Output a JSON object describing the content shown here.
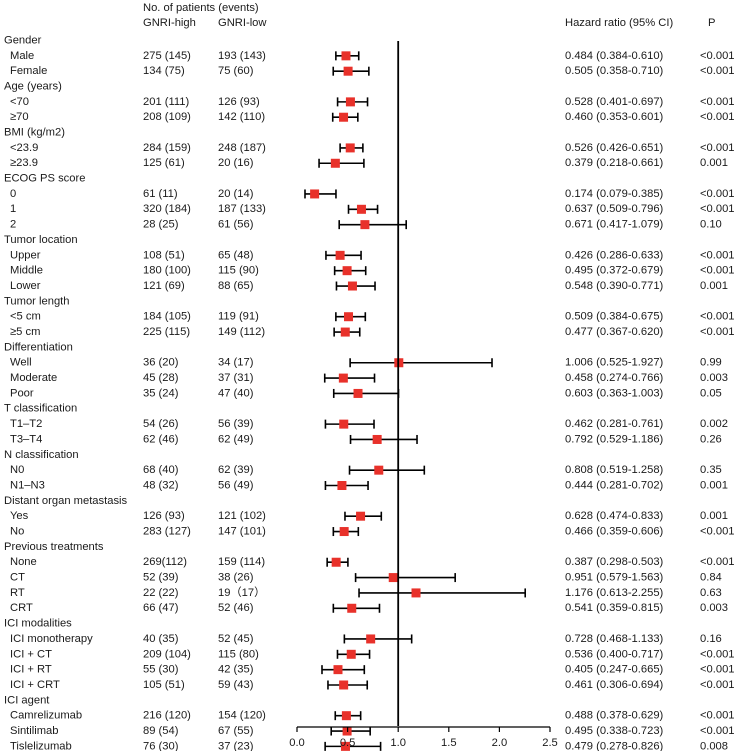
{
  "header": {
    "patients_title": "No. of patients (events)",
    "col_high": "GNRI-high",
    "col_low": "GNRI-low",
    "col_hr": "Hazard ratio (95% CI)",
    "col_p": "P"
  },
  "chart_data": {
    "type": "forest",
    "xlim": [
      0,
      2.5
    ],
    "reference_line": 1.0,
    "x_ticks": [
      "0.0",
      "0.5",
      "1.0",
      "1.5",
      "2.0",
      "2.5"
    ],
    "colors": {
      "marker": "#e8312a",
      "line": "#000000"
    },
    "rows": [
      {
        "label": "Gender",
        "group": true
      },
      {
        "label": "Male",
        "high": "275 (145)",
        "low": "193 (143)",
        "hr": 0.484,
        "lo": 0.384,
        "hi": 0.61,
        "hr_text": "0.484 (0.384-0.610)",
        "p": "<0.001"
      },
      {
        "label": "Female",
        "high": "134 (75)",
        "low": "75 (60)",
        "hr": 0.505,
        "lo": 0.358,
        "hi": 0.71,
        "hr_text": "0.505 (0.358-0.710)",
        "p": "<0.001"
      },
      {
        "label": "Age (years)",
        "group": true
      },
      {
        "label": "<70",
        "high": "201 (111)",
        "low": "126 (93)",
        "hr": 0.528,
        "lo": 0.401,
        "hi": 0.697,
        "hr_text": "0.528 (0.401-0.697)",
        "p": "<0.001"
      },
      {
        "label": "≥70",
        "high": "208 (109)",
        "low": "142 (110)",
        "hr": 0.46,
        "lo": 0.353,
        "hi": 0.601,
        "hr_text": "0.460 (0.353-0.601)",
        "p": "<0.001"
      },
      {
        "label": "BMI (kg/m2)",
        "group": true
      },
      {
        "label": "<23.9",
        "high": "284 (159)",
        "low": "248 (187)",
        "hr": 0.526,
        "lo": 0.426,
        "hi": 0.651,
        "hr_text": "0.526 (0.426-0.651)",
        "p": "<0.001"
      },
      {
        "label": "≥23.9",
        "high": "125 (61)",
        "low": "20 (16)",
        "hr": 0.379,
        "lo": 0.218,
        "hi": 0.661,
        "hr_text": "0.379 (0.218-0.661)",
        "p": "0.001"
      },
      {
        "label": "ECOG PS score",
        "group": true
      },
      {
        "label": "0",
        "high": "61 (11)",
        "low": "20 (14)",
        "hr": 0.174,
        "lo": 0.079,
        "hi": 0.385,
        "hr_text": "0.174 (0.079-0.385)",
        "p": "<0.001"
      },
      {
        "label": "1",
        "high": "320 (184)",
        "low": "187 (133)",
        "hr": 0.637,
        "lo": 0.509,
        "hi": 0.796,
        "hr_text": "0.637 (0.509-0.796)",
        "p": "<0.001"
      },
      {
        "label": "2",
        "high": "28 (25)",
        "low": "61 (56)",
        "hr": 0.671,
        "lo": 0.417,
        "hi": 1.079,
        "hr_text": "0.671 (0.417-1.079)",
        "p": "0.10"
      },
      {
        "label": "Tumor location",
        "group": true
      },
      {
        "label": "Upper",
        "high": "108 (51)",
        "low": "65 (48)",
        "hr": 0.426,
        "lo": 0.286,
        "hi": 0.633,
        "hr_text": "0.426 (0.286-0.633)",
        "p": "<0.001"
      },
      {
        "label": "Middle",
        "high": "180 (100)",
        "low": "115 (90)",
        "hr": 0.495,
        "lo": 0.372,
        "hi": 0.679,
        "hr_text": "0.495 (0.372-0.679)",
        "p": "<0.001"
      },
      {
        "label": "Lower",
        "high": "121 (69)",
        "low": "88 (65)",
        "hr": 0.548,
        "lo": 0.39,
        "hi": 0.771,
        "hr_text": "0.548 (0.390-0.771)",
        "p": "0.001"
      },
      {
        "label": "Tumor length",
        "group": true
      },
      {
        "label": "<5 cm",
        "high": "184 (105)",
        "low": "119 (91)",
        "hr": 0.509,
        "lo": 0.384,
        "hi": 0.675,
        "hr_text": "0.509 (0.384-0.675)",
        "p": "<0.001"
      },
      {
        "label": "≥5 cm",
        "high": "225 (115)",
        "low": "149 (112)",
        "hr": 0.477,
        "lo": 0.367,
        "hi": 0.62,
        "hr_text": "0.477 (0.367-0.620)",
        "p": "<0.001"
      },
      {
        "label": "Differentiation",
        "group": true
      },
      {
        "label": "Well",
        "high": "36 (20)",
        "low": "34 (17)",
        "hr": 1.006,
        "lo": 0.525,
        "hi": 1.927,
        "hr_text": "1.006 (0.525-1.927)",
        "p": "0.99"
      },
      {
        "label": "Moderate",
        "high": "45 (28)",
        "low": "37 (31)",
        "hr": 0.458,
        "lo": 0.274,
        "hi": 0.766,
        "hr_text": "0.458 (0.274-0.766)",
        "p": "0.003"
      },
      {
        "label": "Poor",
        "high": "35 (24)",
        "low": "47 (40)",
        "hr": 0.603,
        "lo": 0.363,
        "hi": 1.003,
        "hr_text": "0.603 (0.363-1.003)",
        "p": "0.05"
      },
      {
        "label": "T classification",
        "group": true
      },
      {
        "label": "T1–T2",
        "high": "54 (26)",
        "low": "56 (39)",
        "hr": 0.462,
        "lo": 0.281,
        "hi": 0.761,
        "hr_text": "0.462 (0.281-0.761)",
        "p": "0.002"
      },
      {
        "label": "T3–T4",
        "high": "62 (46)",
        "low": "62 (49)",
        "hr": 0.792,
        "lo": 0.529,
        "hi": 1.186,
        "hr_text": "0.792 (0.529-1.186)",
        "p": "0.26"
      },
      {
        "label": "N classification",
        "group": true
      },
      {
        "label": "N0",
        "high": "68 (40)",
        "low": "62 (39)",
        "hr": 0.808,
        "lo": 0.519,
        "hi": 1.258,
        "hr_text": "0.808 (0.519-1.258)",
        "p": "0.35"
      },
      {
        "label": "N1–N3",
        "high": "48 (32)",
        "low": "56 (49)",
        "hr": 0.444,
        "lo": 0.281,
        "hi": 0.702,
        "hr_text": "0.444 (0.281-0.702)",
        "p": "0.001"
      },
      {
        "label": "Distant organ metastasis",
        "group": true
      },
      {
        "label": "Yes",
        "high": "126 (93)",
        "low": "121 (102)",
        "hr": 0.628,
        "lo": 0.474,
        "hi": 0.833,
        "hr_text": "0.628 (0.474-0.833)",
        "p": "0.001"
      },
      {
        "label": "No",
        "high": "283 (127)",
        "low": "147 (101)",
        "hr": 0.466,
        "lo": 0.359,
        "hi": 0.606,
        "hr_text": "0.466 (0.359-0.606)",
        "p": "<0.001"
      },
      {
        "label": "Previous treatments",
        "group": true
      },
      {
        "label": "None",
        "high": "269(112)",
        "low": "159 (114)",
        "hr": 0.387,
        "lo": 0.298,
        "hi": 0.503,
        "hr_text": "0.387 (0.298-0.503)",
        "p": "<0.001"
      },
      {
        "label": "CT",
        "high": "52 (39)",
        "low": "38 (26)",
        "hr": 0.951,
        "lo": 0.579,
        "hi": 1.563,
        "hr_text": "0.951 (0.579-1.563)",
        "p": "0.84"
      },
      {
        "label": "RT",
        "high": "22 (22)",
        "low": "19（17）",
        "hr": 1.176,
        "lo": 0.613,
        "hi": 2.255,
        "hr_text": "1.176 (0.613-2.255)",
        "p": "0.63"
      },
      {
        "label": "CRT",
        "high": "66 (47)",
        "low": "52 (46)",
        "hr": 0.541,
        "lo": 0.359,
        "hi": 0.815,
        "hr_text": "0.541 (0.359-0.815)",
        "p": "0.003"
      },
      {
        "label": "ICI modalities",
        "group": true
      },
      {
        "label": "ICI monotherapy",
        "high": "40 (35)",
        "low": "52 (45)",
        "hr": 0.728,
        "lo": 0.468,
        "hi": 1.133,
        "hr_text": "0.728 (0.468-1.133)",
        "p": "0.16"
      },
      {
        "label": "ICI + CT",
        "high": "209 (104)",
        "low": "115 (80)",
        "hr": 0.536,
        "lo": 0.4,
        "hi": 0.717,
        "hr_text": "0.536 (0.400-0.717)",
        "p": "<0.001"
      },
      {
        "label": "ICI + RT",
        "high": "55 (30)",
        "low": "42 (35)",
        "hr": 0.405,
        "lo": 0.247,
        "hi": 0.665,
        "hr_text": "0.405 (0.247-0.665)",
        "p": "<0.001"
      },
      {
        "label": "ICI + CRT",
        "high": "105 (51)",
        "low": "59 (43)",
        "hr": 0.461,
        "lo": 0.306,
        "hi": 0.694,
        "hr_text": "0.461 (0.306-0.694)",
        "p": "<0.001"
      },
      {
        "label": "ICI agent",
        "group": true
      },
      {
        "label": "Camrelizumab",
        "high": "216 (120)",
        "low": "154 (120)",
        "hr": 0.488,
        "lo": 0.378,
        "hi": 0.629,
        "hr_text": "0.488 (0.378-0.629)",
        "p": "<0.001"
      },
      {
        "label": "Sintilimab",
        "high": "89 (54)",
        "low": "67 (55)",
        "hr": 0.495,
        "lo": 0.338,
        "hi": 0.723,
        "hr_text": "0.495 (0.338-0.723)",
        "p": "<0.001"
      },
      {
        "label": "Tislelizumab",
        "high": "76 (30)",
        "low": "37 (23)",
        "hr": 0.479,
        "lo": 0.278,
        "hi": 0.826,
        "hr_text": "0.479 (0.278-0.826)",
        "p": "0.008"
      }
    ]
  }
}
